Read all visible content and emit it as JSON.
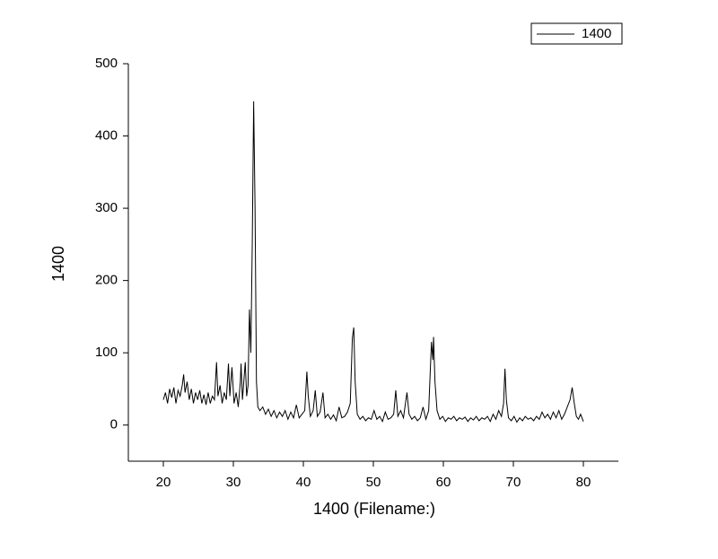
{
  "chart_data": {
    "type": "line",
    "x_label": "1400 (Filename:)",
    "y_label": "1400",
    "xlim": [
      15,
      85
    ],
    "xticks": [
      20,
      30,
      40,
      50,
      60,
      70,
      80
    ],
    "ylim": [
      -50,
      500
    ],
    "yticks": [
      0,
      100,
      200,
      300,
      400,
      500
    ],
    "legend": "top-right",
    "x": [
      20,
      20.3,
      20.6,
      20.9,
      21.2,
      21.5,
      21.8,
      22.1,
      22.4,
      22.7,
      22.9,
      23.1,
      23.4,
      23.7,
      24,
      24.3,
      24.6,
      24.9,
      25.2,
      25.5,
      25.8,
      26.1,
      26.4,
      26.7,
      27,
      27.3,
      27.6,
      27.8,
      28.1,
      28.4,
      28.7,
      29,
      29.3,
      29.5,
      29.8,
      30.1,
      30.4,
      30.7,
      31,
      31.1,
      31.3,
      31.7,
      31.9,
      32.1,
      32.3,
      32.5,
      32.7,
      32.9,
      33.1,
      33.3,
      33.5,
      33.8,
      34.2,
      34.6,
      35,
      35.4,
      35.8,
      36.2,
      36.6,
      37,
      37.4,
      37.8,
      38.2,
      38.6,
      39,
      39.4,
      39.8,
      40.2,
      40.5,
      40.7,
      41,
      41.4,
      41.7,
      42,
      42.4,
      42.8,
      43.1,
      43.5,
      43.9,
      44.3,
      44.7,
      45.1,
      45.5,
      45.9,
      46.3,
      46.7,
      47,
      47.2,
      47.4,
      47.7,
      48.1,
      48.5,
      48.9,
      49.3,
      49.7,
      50.1,
      50.5,
      50.9,
      51.3,
      51.7,
      52.1,
      52.5,
      52.9,
      53.2,
      53.5,
      53.9,
      54.3,
      54.8,
      55.1,
      55.5,
      55.9,
      56.3,
      56.7,
      57.1,
      57.5,
      57.9,
      58.3,
      58.5,
      58.6,
      58.8,
      59.1,
      59.5,
      59.9,
      60.3,
      60.7,
      61.1,
      61.5,
      61.9,
      62.3,
      62.7,
      63.1,
      63.5,
      63.9,
      64.3,
      64.7,
      65.1,
      65.5,
      65.9,
      66.3,
      66.7,
      67.1,
      67.5,
      67.9,
      68.3,
      68.6,
      68.8,
      69,
      69.3,
      69.7,
      70.1,
      70.5,
      70.9,
      71.3,
      71.7,
      72.1,
      72.5,
      72.9,
      73.3,
      73.7,
      74.1,
      74.5,
      74.9,
      75.3,
      75.7,
      76.1,
      76.5,
      76.9,
      77.3,
      77.7,
      78.1,
      78.4,
      78.7,
      79,
      79.3,
      79.6,
      80
    ],
    "series": [
      {
        "name": "1400",
        "color": "#000000",
        "values": [
          35,
          45,
          30,
          50,
          38,
          52,
          30,
          48,
          40,
          55,
          70,
          45,
          60,
          35,
          50,
          30,
          45,
          35,
          48,
          30,
          42,
          28,
          45,
          30,
          40,
          35,
          87,
          40,
          55,
          30,
          45,
          35,
          85,
          40,
          80,
          30,
          45,
          25,
          60,
          85,
          35,
          87,
          40,
          55,
          160,
          100,
          250,
          448,
          300,
          60,
          25,
          20,
          25,
          15,
          22,
          12,
          20,
          10,
          18,
          12,
          20,
          8,
          18,
          10,
          28,
          10,
          15,
          20,
          74,
          40,
          12,
          20,
          48,
          12,
          18,
          45,
          10,
          15,
          8,
          14,
          6,
          25,
          10,
          12,
          18,
          30,
          120,
          135,
          60,
          15,
          8,
          12,
          6,
          10,
          8,
          20,
          8,
          12,
          5,
          18,
          8,
          10,
          15,
          48,
          12,
          20,
          10,
          45,
          15,
          8,
          12,
          6,
          10,
          25,
          8,
          20,
          115,
          90,
          122,
          60,
          20,
          8,
          12,
          5,
          10,
          8,
          12,
          6,
          10,
          8,
          11,
          5,
          10,
          7,
          12,
          6,
          10,
          8,
          12,
          5,
          15,
          8,
          20,
          12,
          30,
          78,
          35,
          10,
          6,
          12,
          4,
          10,
          6,
          12,
          8,
          10,
          6,
          12,
          8,
          18,
          10,
          15,
          8,
          18,
          10,
          20,
          8,
          15,
          25,
          35,
          52,
          30,
          12,
          8,
          15,
          5
        ]
      }
    ]
  }
}
